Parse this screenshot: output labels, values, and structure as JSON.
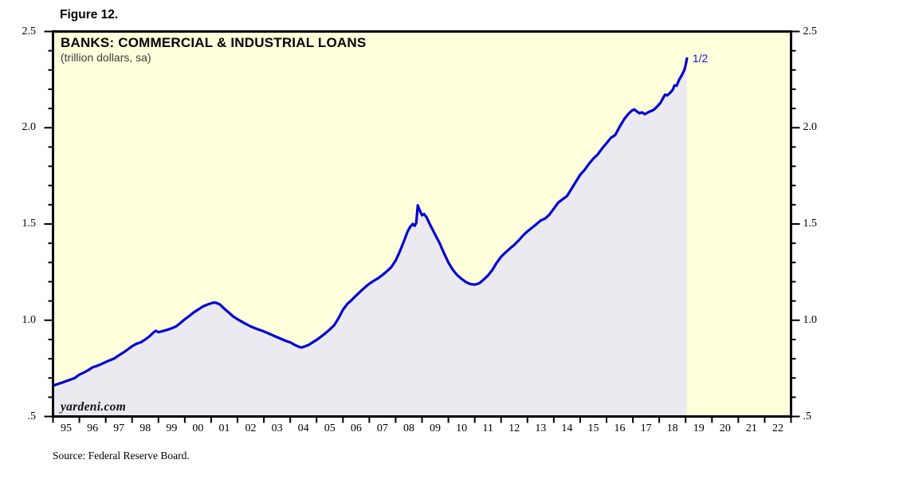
{
  "figure": {
    "label": "Figure 12."
  },
  "header": {
    "title": "BANKS: COMMERCIAL & INDUSTRIAL LOANS",
    "subtitle": "(trillion dollars, sa)"
  },
  "watermark": "yardeni.com",
  "source": "Source: Federal Reserve Board.",
  "colors": {
    "plot_background": "#FFFFDC",
    "area_fill": "#EAEAF0",
    "line": "#0000D2",
    "frame": "#000000",
    "annotation_blue": "#1414D2"
  },
  "chart_data": {
    "type": "area",
    "title": "BANKS: COMMERCIAL & INDUSTRIAL LOANS",
    "subtitle": "(trillion dollars, sa)",
    "grid": false,
    "legend_position": "none",
    "x_axis": {
      "min": 1995,
      "max": 2023,
      "tick_interval": 1,
      "year_labels": [
        "95",
        "96",
        "97",
        "98",
        "99",
        "00",
        "01",
        "02",
        "03",
        "04",
        "05",
        "06",
        "07",
        "08",
        "09",
        "10",
        "11",
        "12",
        "13",
        "14",
        "15",
        "16",
        "17",
        "18",
        "19",
        "20",
        "21",
        "22"
      ]
    },
    "y_axis": {
      "min": 0.5,
      "max": 2.5,
      "minor_step": 0.1,
      "major_ticks": [
        {
          "value": 2.5,
          "label": "2.5"
        },
        {
          "value": 2.0,
          "label": "2.0"
        },
        {
          "value": 1.5,
          "label": "1.5"
        },
        {
          "value": 1.0,
          "label": "1.0"
        },
        {
          "value": 0.5,
          "label": ".5"
        }
      ]
    },
    "series": [
      {
        "name": "Banks: Commercial & Industrial Loans",
        "units": "trillion dollars, sa",
        "color": "#0000D2",
        "last_point_label": "1/2",
        "points": [
          [
            1995.0,
            0.66
          ],
          [
            1995.17,
            0.668
          ],
          [
            1995.33,
            0.675
          ],
          [
            1995.5,
            0.684
          ],
          [
            1995.67,
            0.692
          ],
          [
            1995.83,
            0.7
          ],
          [
            1996.0,
            0.718
          ],
          [
            1996.17,
            0.728
          ],
          [
            1996.33,
            0.74
          ],
          [
            1996.5,
            0.755
          ],
          [
            1996.67,
            0.763
          ],
          [
            1996.83,
            0.772
          ],
          [
            1997.0,
            0.783
          ],
          [
            1997.17,
            0.793
          ],
          [
            1997.33,
            0.802
          ],
          [
            1997.5,
            0.818
          ],
          [
            1997.67,
            0.832
          ],
          [
            1997.83,
            0.848
          ],
          [
            1998.0,
            0.865
          ],
          [
            1998.17,
            0.878
          ],
          [
            1998.33,
            0.885
          ],
          [
            1998.5,
            0.9
          ],
          [
            1998.67,
            0.918
          ],
          [
            1998.8,
            0.935
          ],
          [
            1998.9,
            0.945
          ],
          [
            1999.0,
            0.938
          ],
          [
            1999.17,
            0.944
          ],
          [
            1999.33,
            0.95
          ],
          [
            1999.5,
            0.958
          ],
          [
            1999.67,
            0.968
          ],
          [
            1999.83,
            0.985
          ],
          [
            2000.0,
            1.005
          ],
          [
            2000.17,
            1.022
          ],
          [
            2000.33,
            1.04
          ],
          [
            2000.5,
            1.055
          ],
          [
            2000.67,
            1.07
          ],
          [
            2000.83,
            1.08
          ],
          [
            2001.0,
            1.088
          ],
          [
            2001.1,
            1.092
          ],
          [
            2001.2,
            1.09
          ],
          [
            2001.33,
            1.082
          ],
          [
            2001.5,
            1.06
          ],
          [
            2001.67,
            1.04
          ],
          [
            2001.83,
            1.02
          ],
          [
            2002.0,
            1.005
          ],
          [
            2002.17,
            0.992
          ],
          [
            2002.33,
            0.98
          ],
          [
            2002.5,
            0.968
          ],
          [
            2002.67,
            0.958
          ],
          [
            2002.83,
            0.95
          ],
          [
            2003.0,
            0.942
          ],
          [
            2003.17,
            0.932
          ],
          [
            2003.33,
            0.922
          ],
          [
            2003.5,
            0.912
          ],
          [
            2003.67,
            0.902
          ],
          [
            2003.83,
            0.893
          ],
          [
            2004.0,
            0.885
          ],
          [
            2004.17,
            0.872
          ],
          [
            2004.3,
            0.864
          ],
          [
            2004.42,
            0.858
          ],
          [
            2004.55,
            0.864
          ],
          [
            2004.7,
            0.872
          ],
          [
            2004.85,
            0.885
          ],
          [
            2005.0,
            0.898
          ],
          [
            2005.17,
            0.915
          ],
          [
            2005.33,
            0.932
          ],
          [
            2005.5,
            0.952
          ],
          [
            2005.67,
            0.975
          ],
          [
            2005.83,
            1.01
          ],
          [
            2006.0,
            1.055
          ],
          [
            2006.17,
            1.085
          ],
          [
            2006.33,
            1.105
          ],
          [
            2006.5,
            1.128
          ],
          [
            2006.67,
            1.15
          ],
          [
            2006.83,
            1.17
          ],
          [
            2007.0,
            1.19
          ],
          [
            2007.17,
            1.205
          ],
          [
            2007.33,
            1.218
          ],
          [
            2007.5,
            1.235
          ],
          [
            2007.67,
            1.255
          ],
          [
            2007.83,
            1.275
          ],
          [
            2008.0,
            1.31
          ],
          [
            2008.15,
            1.355
          ],
          [
            2008.3,
            1.405
          ],
          [
            2008.45,
            1.46
          ],
          [
            2008.55,
            1.485
          ],
          [
            2008.65,
            1.5
          ],
          [
            2008.72,
            1.49
          ],
          [
            2008.78,
            1.505
          ],
          [
            2008.84,
            1.597
          ],
          [
            2008.9,
            1.575
          ],
          [
            2009.0,
            1.545
          ],
          [
            2009.08,
            1.552
          ],
          [
            2009.17,
            1.535
          ],
          [
            2009.33,
            1.49
          ],
          [
            2009.5,
            1.445
          ],
          [
            2009.67,
            1.4
          ],
          [
            2009.83,
            1.35
          ],
          [
            2010.0,
            1.3
          ],
          [
            2010.17,
            1.262
          ],
          [
            2010.33,
            1.235
          ],
          [
            2010.5,
            1.215
          ],
          [
            2010.67,
            1.198
          ],
          [
            2010.83,
            1.188
          ],
          [
            2011.0,
            1.185
          ],
          [
            2011.17,
            1.192
          ],
          [
            2011.33,
            1.21
          ],
          [
            2011.5,
            1.232
          ],
          [
            2011.67,
            1.262
          ],
          [
            2011.83,
            1.298
          ],
          [
            2012.0,
            1.33
          ],
          [
            2012.17,
            1.352
          ],
          [
            2012.33,
            1.372
          ],
          [
            2012.5,
            1.392
          ],
          [
            2012.67,
            1.415
          ],
          [
            2012.83,
            1.44
          ],
          [
            2013.0,
            1.462
          ],
          [
            2013.17,
            1.48
          ],
          [
            2013.33,
            1.498
          ],
          [
            2013.5,
            1.518
          ],
          [
            2013.67,
            1.528
          ],
          [
            2013.83,
            1.548
          ],
          [
            2014.0,
            1.58
          ],
          [
            2014.17,
            1.612
          ],
          [
            2014.33,
            1.628
          ],
          [
            2014.5,
            1.645
          ],
          [
            2014.67,
            1.682
          ],
          [
            2014.83,
            1.718
          ],
          [
            2015.0,
            1.755
          ],
          [
            2015.17,
            1.782
          ],
          [
            2015.33,
            1.812
          ],
          [
            2015.5,
            1.84
          ],
          [
            2015.67,
            1.862
          ],
          [
            2015.83,
            1.892
          ],
          [
            2016.0,
            1.92
          ],
          [
            2016.17,
            1.948
          ],
          [
            2016.33,
            1.962
          ],
          [
            2016.5,
            2.005
          ],
          [
            2016.67,
            2.045
          ],
          [
            2016.83,
            2.072
          ],
          [
            2016.95,
            2.088
          ],
          [
            2017.05,
            2.095
          ],
          [
            2017.15,
            2.085
          ],
          [
            2017.25,
            2.075
          ],
          [
            2017.35,
            2.08
          ],
          [
            2017.45,
            2.07
          ],
          [
            2017.55,
            2.078
          ],
          [
            2017.65,
            2.085
          ],
          [
            2017.75,
            2.09
          ],
          [
            2017.85,
            2.1
          ],
          [
            2017.95,
            2.115
          ],
          [
            2018.05,
            2.13
          ],
          [
            2018.15,
            2.155
          ],
          [
            2018.22,
            2.172
          ],
          [
            2018.3,
            2.168
          ],
          [
            2018.4,
            2.18
          ],
          [
            2018.5,
            2.195
          ],
          [
            2018.58,
            2.22
          ],
          [
            2018.66,
            2.218
          ],
          [
            2018.75,
            2.248
          ],
          [
            2018.85,
            2.272
          ],
          [
            2018.95,
            2.3
          ],
          [
            2019.0,
            2.325
          ],
          [
            2019.05,
            2.36
          ]
        ]
      }
    ]
  }
}
